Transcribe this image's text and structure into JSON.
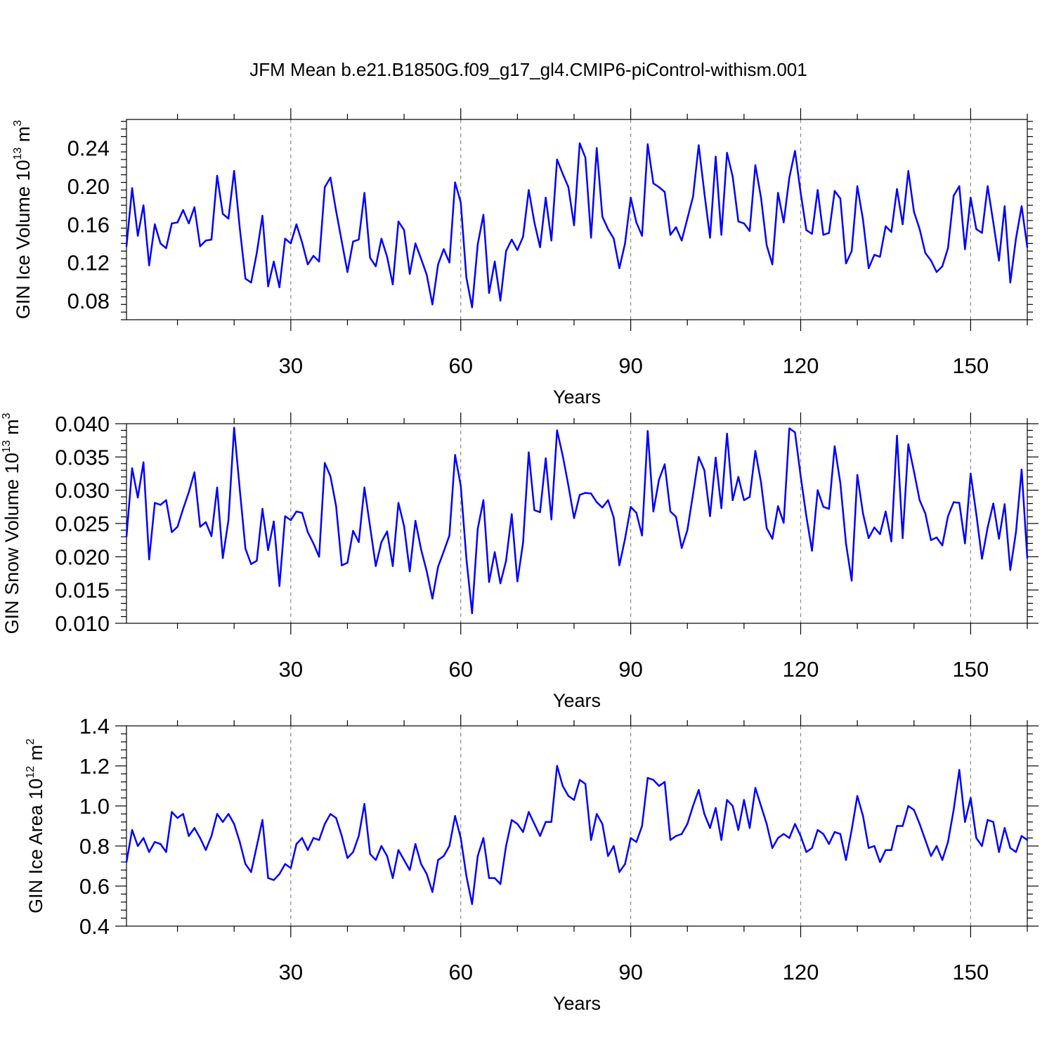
{
  "figure": {
    "title": "JFM Mean b.e21.B1850G.f09_g17_gl4.CMIP6-piControl-withism.001"
  },
  "chart_data": [
    {
      "type": "line",
      "xlabel": "Years",
      "ylabel": {
        "main": "GIN Ice Volume 10",
        "sup": "13",
        "unit": " m",
        "unit_sup": "3"
      },
      "xlim": [
        1,
        160
      ],
      "ylim": [
        0.06,
        0.27
      ],
      "xticks": [
        30,
        60,
        90,
        120,
        150
      ],
      "xtick_labels": [
        "30",
        "60",
        "90",
        "120",
        "150"
      ],
      "yticks": [
        0.08,
        0.12,
        0.16,
        0.2,
        0.24
      ],
      "ytick_labels": [
        "0.08",
        "0.12",
        "0.16",
        "0.20",
        "0.24"
      ],
      "grid": "vertical dashed at major x ticks",
      "color": "#0000ff",
      "x_start": 1,
      "series": [
        {
          "values": [
            0.137,
            0.198,
            0.148,
            0.18,
            0.117,
            0.16,
            0.14,
            0.135,
            0.161,
            0.162,
            0.175,
            0.161,
            0.178,
            0.137,
            0.143,
            0.144,
            0.211,
            0.171,
            0.166,
            0.216,
            0.156,
            0.103,
            0.099,
            0.13,
            0.169,
            0.095,
            0.121,
            0.094,
            0.145,
            0.14,
            0.16,
            0.141,
            0.118,
            0.127,
            0.121,
            0.199,
            0.209,
            0.174,
            0.142,
            0.11,
            0.142,
            0.144,
            0.193,
            0.125,
            0.116,
            0.145,
            0.126,
            0.097,
            0.163,
            0.154,
            0.108,
            0.14,
            0.124,
            0.107,
            0.076,
            0.118,
            0.134,
            0.12,
            0.204,
            0.183,
            0.104,
            0.073,
            0.139,
            0.17,
            0.088,
            0.121,
            0.08,
            0.132,
            0.144,
            0.133,
            0.147,
            0.196,
            0.162,
            0.136,
            0.188,
            0.143,
            0.228,
            0.213,
            0.199,
            0.159,
            0.245,
            0.23,
            0.146,
            0.24,
            0.168,
            0.155,
            0.145,
            0.114,
            0.14,
            0.188,
            0.162,
            0.148,
            0.244,
            0.203,
            0.199,
            0.194,
            0.149,
            0.157,
            0.143,
            0.166,
            0.189,
            0.243,
            0.193,
            0.146,
            0.231,
            0.149,
            0.235,
            0.21,
            0.163,
            0.161,
            0.153,
            0.222,
            0.188,
            0.138,
            0.118,
            0.193,
            0.162,
            0.209,
            0.237,
            0.193,
            0.154,
            0.15,
            0.196,
            0.149,
            0.151,
            0.195,
            0.187,
            0.119,
            0.132,
            0.2,
            0.165,
            0.114,
            0.128,
            0.126,
            0.158,
            0.152,
            0.197,
            0.16,
            0.216,
            0.173,
            0.155,
            0.13,
            0.122,
            0.11,
            0.116,
            0.135,
            0.19,
            0.2,
            0.134,
            0.188,
            0.155,
            0.151,
            0.2,
            0.162,
            0.122,
            0.179,
            0.099,
            0.145,
            0.179,
            0.136
          ]
        }
      ]
    },
    {
      "type": "line",
      "xlabel": "Years",
      "ylabel": {
        "main": "GIN Snow Volume 10",
        "sup": "13",
        "unit": " m",
        "unit_sup": "3"
      },
      "xlim": [
        1,
        160
      ],
      "ylim": [
        0.01,
        0.04
      ],
      "xticks": [
        30,
        60,
        90,
        120,
        150
      ],
      "xtick_labels": [
        "30",
        "60",
        "90",
        "120",
        "150"
      ],
      "yticks": [
        0.01,
        0.015,
        0.02,
        0.025,
        0.03,
        0.035,
        0.04
      ],
      "ytick_labels": [
        "0.010",
        "0.015",
        "0.020",
        "0.025",
        "0.030",
        "0.035",
        "0.040"
      ],
      "grid": "vertical dashed at major x ticks",
      "color": "#0000ff",
      "x_start": 1,
      "series": [
        {
          "values": [
            0.023,
            0.0333,
            0.0289,
            0.0342,
            0.0196,
            0.0281,
            0.0278,
            0.0285,
            0.0237,
            0.0245,
            0.0272,
            0.0297,
            0.0327,
            0.0245,
            0.0252,
            0.0231,
            0.0304,
            0.0198,
            0.0255,
            0.0394,
            0.0301,
            0.0212,
            0.0189,
            0.0194,
            0.0272,
            0.021,
            0.0253,
            0.0156,
            0.0261,
            0.0255,
            0.0268,
            0.0266,
            0.0237,
            0.022,
            0.02,
            0.0341,
            0.0321,
            0.0276,
            0.0187,
            0.0191,
            0.0239,
            0.0222,
            0.0304,
            0.0245,
            0.0186,
            0.0222,
            0.0238,
            0.0186,
            0.0281,
            0.0246,
            0.0178,
            0.0254,
            0.0211,
            0.0178,
            0.0137,
            0.0185,
            0.0208,
            0.0232,
            0.0353,
            0.0307,
            0.0197,
            0.0115,
            0.0242,
            0.0285,
            0.0162,
            0.0207,
            0.016,
            0.0194,
            0.0264,
            0.0163,
            0.0221,
            0.0357,
            0.027,
            0.0267,
            0.0348,
            0.0256,
            0.039,
            0.0352,
            0.0307,
            0.0258,
            0.0293,
            0.0296,
            0.0295,
            0.0282,
            0.0274,
            0.0285,
            0.0259,
            0.0187,
            0.0227,
            0.0275,
            0.0266,
            0.0232,
            0.0389,
            0.0268,
            0.0316,
            0.0339,
            0.0268,
            0.026,
            0.0213,
            0.024,
            0.0294,
            0.035,
            0.033,
            0.0261,
            0.0349,
            0.0273,
            0.0385,
            0.0285,
            0.032,
            0.0285,
            0.029,
            0.0359,
            0.0312,
            0.0243,
            0.0227,
            0.0276,
            0.0251,
            0.0393,
            0.0387,
            0.0321,
            0.0261,
            0.0209,
            0.03,
            0.0275,
            0.0272,
            0.0366,
            0.0311,
            0.022,
            0.0164,
            0.0323,
            0.0265,
            0.0228,
            0.0244,
            0.0234,
            0.0268,
            0.0223,
            0.0382,
            0.0228,
            0.0369,
            0.0328,
            0.0285,
            0.0265,
            0.0225,
            0.0229,
            0.0217,
            0.0261,
            0.0282,
            0.0281,
            0.022,
            0.0325,
            0.0264,
            0.0197,
            0.0244,
            0.028,
            0.0227,
            0.0279,
            0.018,
            0.0237,
            0.0331,
            0.0198
          ]
        }
      ]
    },
    {
      "type": "line",
      "xlabel": "Years",
      "ylabel": {
        "main": "GIN Ice Area 10",
        "sup": "12",
        "unit": " m",
        "unit_sup": "2"
      },
      "xlim": [
        1,
        160
      ],
      "ylim": [
        0.4,
        1.4
      ],
      "xticks": [
        30,
        60,
        90,
        120,
        150
      ],
      "xtick_labels": [
        "30",
        "60",
        "90",
        "120",
        "150"
      ],
      "yticks": [
        0.4,
        0.6,
        0.8,
        1.0,
        1.2,
        1.4
      ],
      "ytick_labels": [
        "0.4",
        "0.6",
        "0.8",
        "1.0",
        "1.2",
        "1.4"
      ],
      "grid": "vertical dashed at major x ticks",
      "color": "#0000ff",
      "x_start": 1,
      "series": [
        {
          "values": [
            0.72,
            0.88,
            0.8,
            0.84,
            0.77,
            0.82,
            0.81,
            0.77,
            0.97,
            0.94,
            0.96,
            0.85,
            0.89,
            0.84,
            0.78,
            0.85,
            0.96,
            0.92,
            0.96,
            0.91,
            0.82,
            0.71,
            0.67,
            0.8,
            0.93,
            0.64,
            0.63,
            0.66,
            0.71,
            0.69,
            0.81,
            0.84,
            0.78,
            0.84,
            0.83,
            0.91,
            0.96,
            0.94,
            0.85,
            0.74,
            0.77,
            0.85,
            1.01,
            0.76,
            0.73,
            0.8,
            0.75,
            0.64,
            0.78,
            0.73,
            0.68,
            0.81,
            0.71,
            0.66,
            0.57,
            0.73,
            0.75,
            0.8,
            0.95,
            0.84,
            0.65,
            0.51,
            0.75,
            0.84,
            0.64,
            0.64,
            0.61,
            0.8,
            0.93,
            0.91,
            0.87,
            0.97,
            0.91,
            0.85,
            0.92,
            0.92,
            1.2,
            1.1,
            1.05,
            1.03,
            1.13,
            1.11,
            0.83,
            0.96,
            0.91,
            0.75,
            0.8,
            0.67,
            0.71,
            0.84,
            0.82,
            0.9,
            1.14,
            1.13,
            1.1,
            1.12,
            0.83,
            0.85,
            0.86,
            0.91,
            1.0,
            1.08,
            0.96,
            0.89,
            0.99,
            0.83,
            1.03,
            1.0,
            0.88,
            1.03,
            0.89,
            1.09,
            1.0,
            0.91,
            0.79,
            0.84,
            0.86,
            0.84,
            0.91,
            0.85,
            0.77,
            0.79,
            0.88,
            0.86,
            0.81,
            0.87,
            0.86,
            0.73,
            0.88,
            1.05,
            0.95,
            0.79,
            0.8,
            0.72,
            0.78,
            0.78,
            0.9,
            0.9,
            1.0,
            0.98,
            0.91,
            0.83,
            0.75,
            0.8,
            0.73,
            0.82,
            0.98,
            1.18,
            0.92,
            1.04,
            0.84,
            0.8,
            0.93,
            0.92,
            0.77,
            0.89,
            0.79,
            0.77,
            0.85,
            0.83
          ]
        }
      ]
    }
  ]
}
